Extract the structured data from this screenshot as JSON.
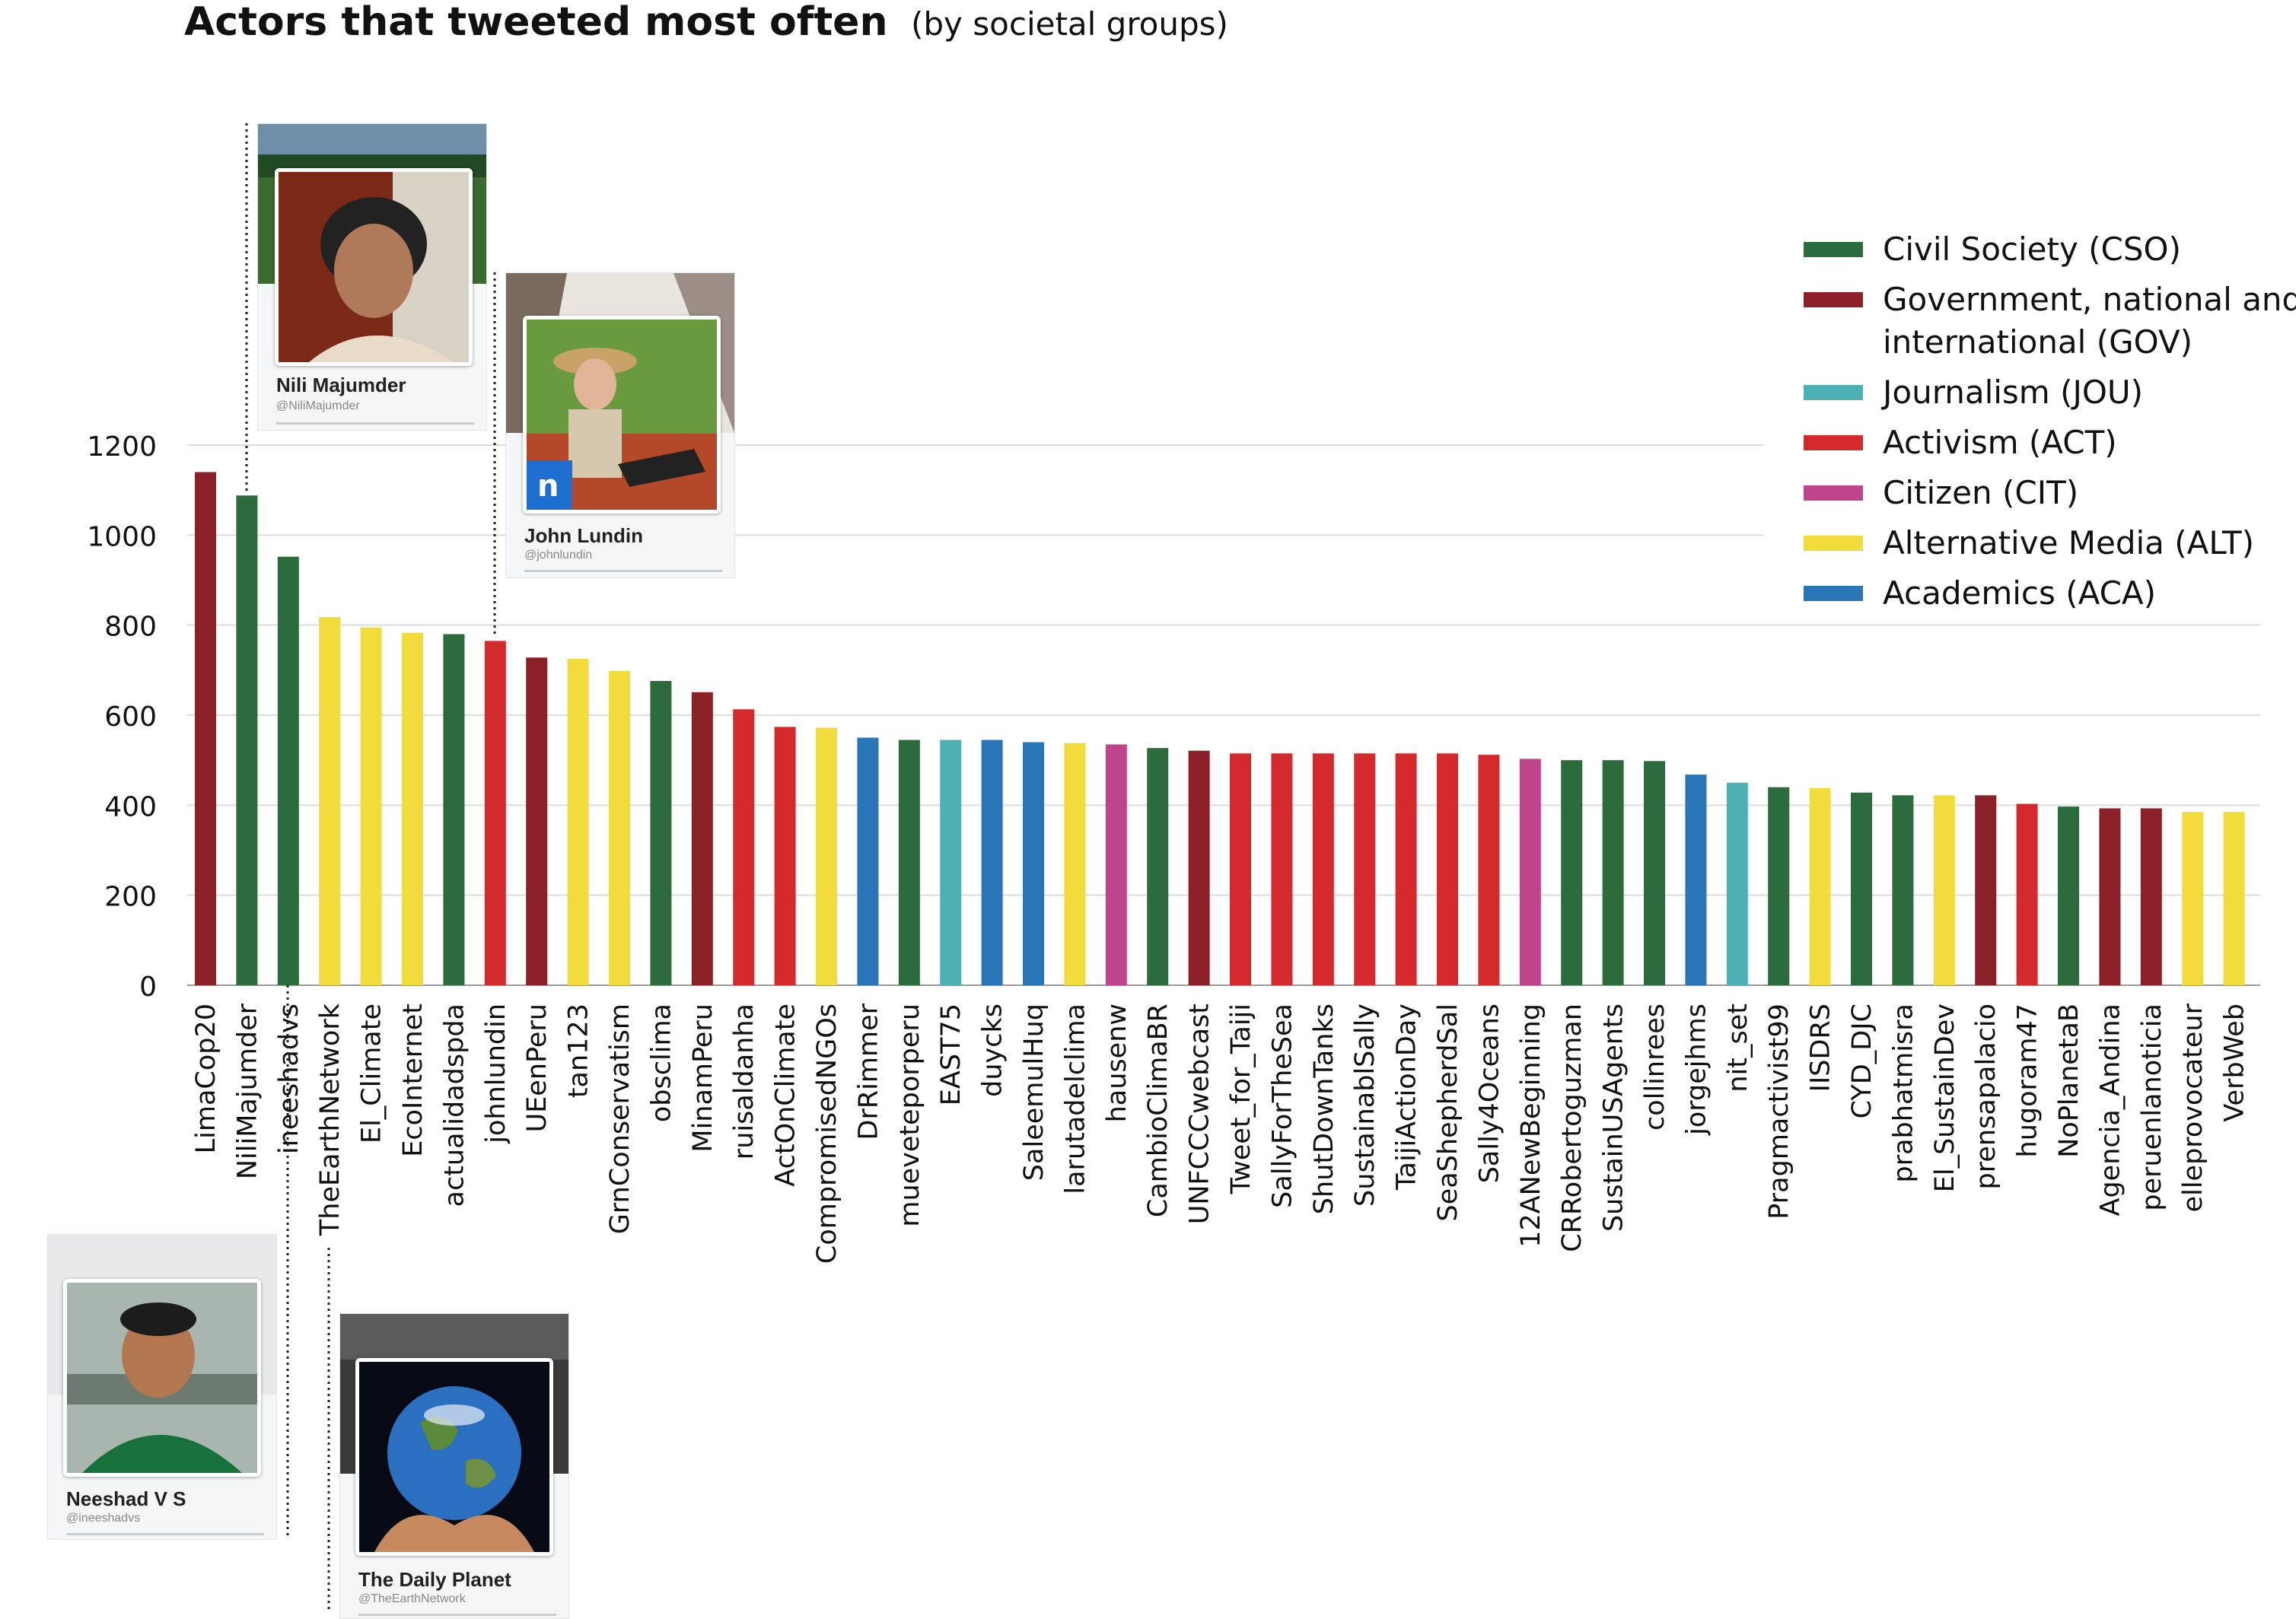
{
  "title": {
    "main": "Actors that tweeted most often",
    "sub": "(by societal groups)"
  },
  "colors": {
    "CSO": "#2b6b3c",
    "GOV": "#8b2028",
    "JOU": "#4db0b5",
    "ACT": "#d42a2e",
    "CIT": "#c0448c",
    "ALT": "#f2dc3c",
    "ACA": "#2a74b8"
  },
  "legend": [
    {
      "group": "CSO",
      "label": "Civil Society (CSO)"
    },
    {
      "group": "GOV",
      "label": "Government, national and international (GOV)"
    },
    {
      "group": "JOU",
      "label": "Journalism (JOU)"
    },
    {
      "group": "ACT",
      "label": "Activism (ACT)"
    },
    {
      "group": "CIT",
      "label": "Citizen (CIT)"
    },
    {
      "group": "ALT",
      "label": "Alternative Media (ALT)"
    },
    {
      "group": "ACA",
      "label": "Academics (ACA)"
    }
  ],
  "profiles": [
    {
      "name": "Nili Majumder",
      "handle": "@NiliMajumder",
      "icon": "person-photo-icon"
    },
    {
      "name": "John Lundin",
      "handle": "@johnlundin",
      "icon": "person-photo-icon"
    },
    {
      "name": "Neeshad V S",
      "handle": "@ineeshadvs",
      "icon": "person-photo-icon"
    },
    {
      "name": "The Daily Planet",
      "handle": "@TheEarthNetwork",
      "icon": "earth-in-hands-icon"
    }
  ],
  "chart_data": {
    "type": "bar",
    "title": "Actors that tweeted most often",
    "subtitle": "(by societal groups)",
    "xlabel": "",
    "ylabel": "",
    "ylim": [
      0,
      1200
    ],
    "yticks": [
      0,
      200,
      400,
      600,
      800,
      1000,
      1200
    ],
    "grid": true,
    "legend_position": "top-right",
    "categories": [
      "LimaCop20",
      "NiliMajumder",
      "ineeshadvs",
      "TheEarthNetwork",
      "El_Climate",
      "EcoInternet",
      "actualidadspda",
      "johnlundin",
      "UEenPeru",
      "tan123",
      "GrnConservatism",
      "obsclima",
      "MinamPeru",
      "ruisaldanha",
      "ActOnClimate",
      "CompromisedNGOs",
      "DrRimmer",
      "mueveteporperu",
      "EAST75",
      "duycks",
      "SaleemulHuq",
      "larutadelclima",
      "hausenw",
      "CambioClimaBR",
      "UNFCCCwebcast",
      "Tweet_for_Taiji",
      "SallyForTheSea",
      "ShutDownTanks",
      "SustainablSally",
      "TaijiActionDay",
      "SeaShepherdSal",
      "Sally4Oceans",
      "12ANewBeginning",
      "CRRobertoguzman",
      "SustainUSAgents",
      "collinrees",
      "jorgejhms",
      "nit_set",
      "Pragmactivist99",
      "IISDRS",
      "CYD_DJC",
      "prabhatmisra",
      "El_SustainDev",
      "prensapalacio",
      "hugoram47",
      "NoPlanetaB",
      "Agencia_Andina",
      "peruenlanoticia",
      "elleprovocateur",
      "VerbWeb"
    ],
    "values": [
      1140,
      1088,
      952,
      818,
      795,
      783,
      780,
      765,
      728,
      725,
      698,
      676,
      651,
      613,
      574,
      572,
      550,
      545,
      545,
      545,
      540,
      538,
      535,
      527,
      521,
      515,
      515,
      515,
      515,
      515,
      515,
      512,
      503,
      500,
      500,
      498,
      468,
      450,
      440,
      438,
      428,
      422,
      422,
      422,
      403,
      397,
      393,
      393,
      385,
      385
    ],
    "groups": [
      "GOV",
      "CSO",
      "CSO",
      "ALT",
      "ALT",
      "ALT",
      "CSO",
      "ACT",
      "GOV",
      "ALT",
      "ALT",
      "CSO",
      "GOV",
      "ACT",
      "ACT",
      "ALT",
      "ACA",
      "CSO",
      "JOU",
      "ACA",
      "ACA",
      "ALT",
      "CIT",
      "CSO",
      "GOV",
      "ACT",
      "ACT",
      "ACT",
      "ACT",
      "ACT",
      "ACT",
      "ACT",
      "CIT",
      "CSO",
      "CSO",
      "CSO",
      "ACA",
      "JOU",
      "CSO",
      "ALT",
      "CSO",
      "CSO",
      "ALT",
      "GOV",
      "ACT",
      "CSO",
      "GOV",
      "GOV",
      "ALT",
      "ALT"
    ]
  }
}
